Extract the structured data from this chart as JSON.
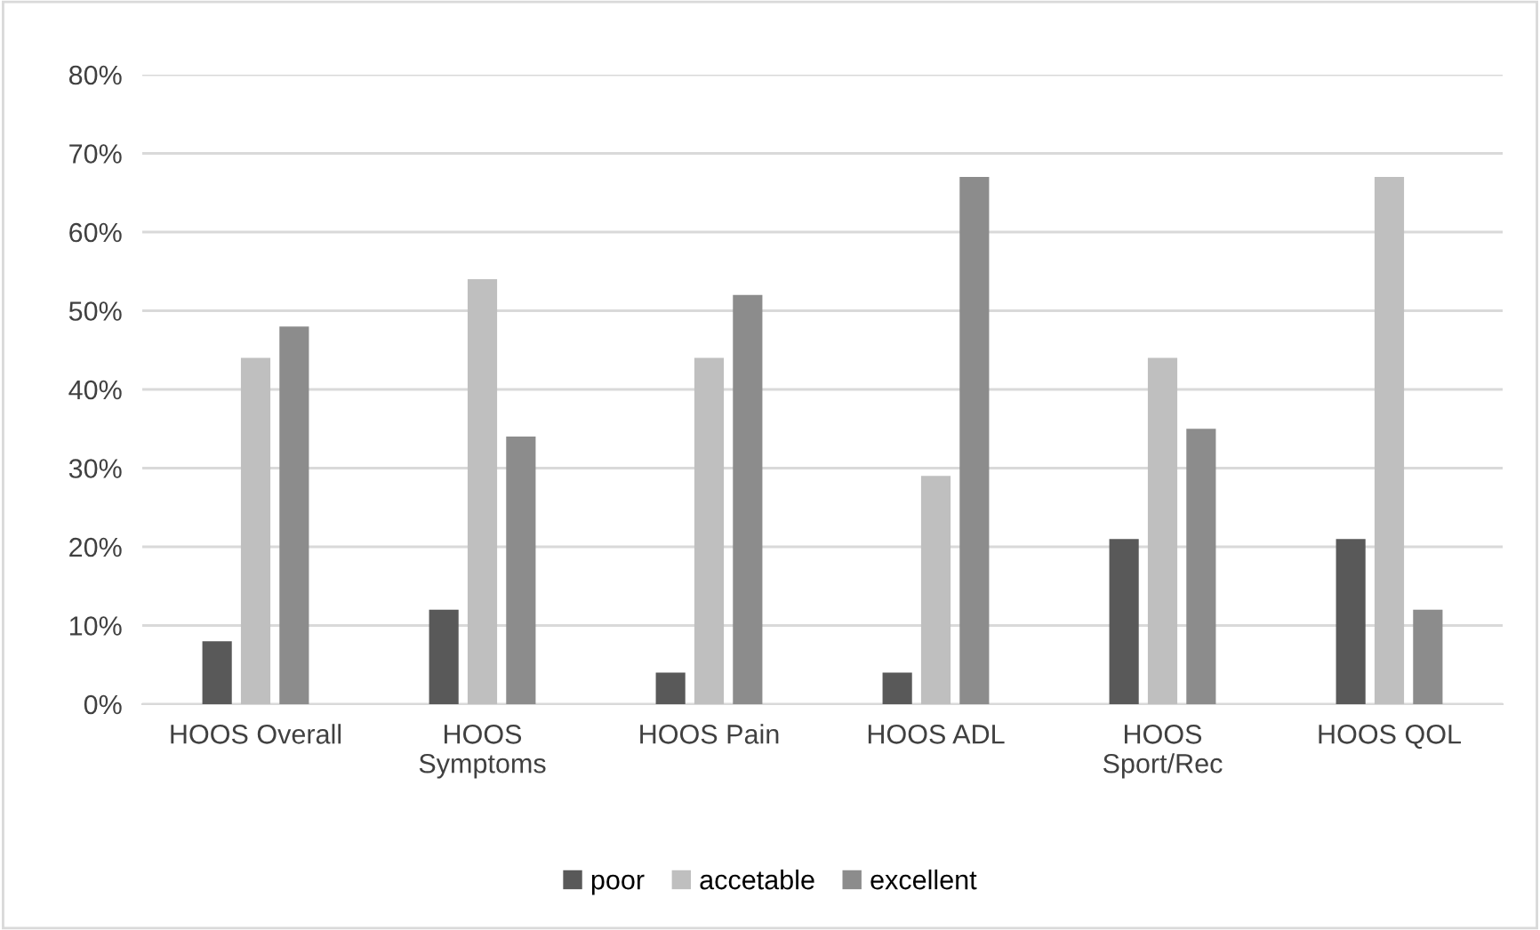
{
  "chart_data": {
    "type": "bar",
    "categories": [
      "HOOS Overall",
      "HOOS Symptoms",
      "HOOS Pain",
      "HOOS ADL",
      "HOOS Sport/Rec",
      "HOOS QOL"
    ],
    "series": [
      {
        "name": "poor",
        "color": "#595959",
        "values": [
          8,
          12,
          4,
          4,
          21,
          21
        ]
      },
      {
        "name": "accetable",
        "color": "#bfbfbf",
        "values": [
          44,
          54,
          44,
          29,
          44,
          67
        ]
      },
      {
        "name": "excellent",
        "color": "#8c8c8c",
        "values": [
          48,
          34,
          52,
          67,
          35,
          12
        ]
      }
    ],
    "ylim": [
      0,
      80
    ],
    "yticks": [
      {
        "value": 0,
        "label": "0%"
      },
      {
        "value": 10,
        "label": "10%"
      },
      {
        "value": 20,
        "label": "20%"
      },
      {
        "value": 30,
        "label": "30%"
      },
      {
        "value": 40,
        "label": "40%"
      },
      {
        "value": 50,
        "label": "50%"
      },
      {
        "value": 60,
        "label": "60%"
      },
      {
        "value": 70,
        "label": "70%"
      },
      {
        "value": 80,
        "label": "80%"
      }
    ],
    "grid": "y",
    "legend": "bottom"
  }
}
